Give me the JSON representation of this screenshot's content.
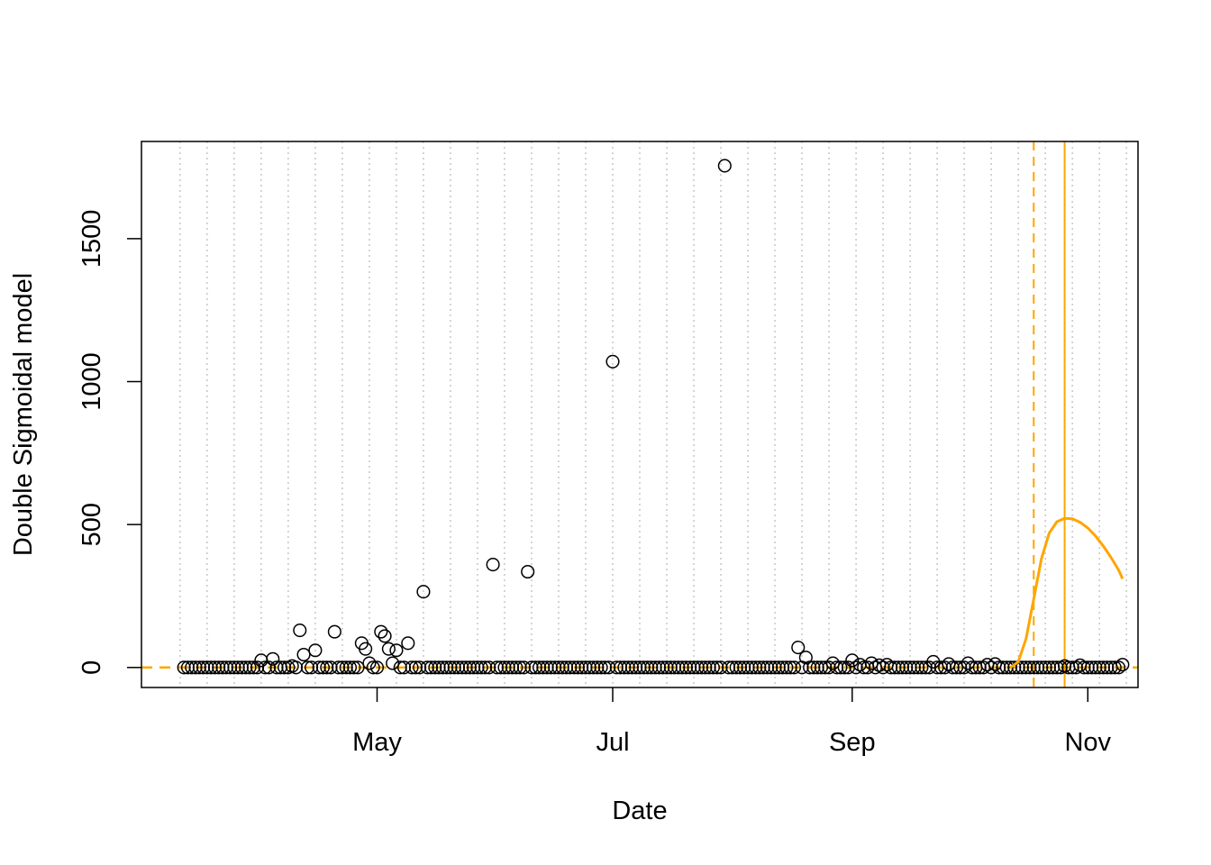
{
  "chart_data": {
    "type": "scatter",
    "xlabel": "Date",
    "ylabel": "Double Sigmoidal model",
    "x_ticks": [
      {
        "date": "2020-05-01",
        "label": "May"
      },
      {
        "date": "2020-07-01",
        "label": "Jul"
      },
      {
        "date": "2020-09-01",
        "label": "Sep"
      },
      {
        "date": "2020-11-01",
        "label": "Nov"
      }
    ],
    "y_ticks": [
      0,
      500,
      1000,
      1500
    ],
    "xlim": [
      "2020-03-01",
      "2020-11-14"
    ],
    "ylim": [
      -70,
      1840
    ],
    "grid": "vertical dotted lines every 7 days",
    "grid_start": "2020-03-11",
    "point_dates": {
      "start": "2020-03-12",
      "end": "2020-11-10",
      "step_days": 1
    },
    "nonzero_points": [
      {
        "date": "2020-04-01",
        "value": 25
      },
      {
        "date": "2020-04-04",
        "value": 30
      },
      {
        "date": "2020-04-09",
        "value": 5
      },
      {
        "date": "2020-04-11",
        "value": 130
      },
      {
        "date": "2020-04-12",
        "value": 45
      },
      {
        "date": "2020-04-15",
        "value": 60
      },
      {
        "date": "2020-04-20",
        "value": 125
      },
      {
        "date": "2020-04-27",
        "value": 85
      },
      {
        "date": "2020-04-28",
        "value": 65
      },
      {
        "date": "2020-04-29",
        "value": 15
      },
      {
        "date": "2020-05-02",
        "value": 125
      },
      {
        "date": "2020-05-03",
        "value": 110
      },
      {
        "date": "2020-05-04",
        "value": 65
      },
      {
        "date": "2020-05-05",
        "value": 15
      },
      {
        "date": "2020-05-06",
        "value": 60
      },
      {
        "date": "2020-05-09",
        "value": 85
      },
      {
        "date": "2020-05-13",
        "value": 265
      },
      {
        "date": "2020-05-31",
        "value": 360
      },
      {
        "date": "2020-06-09",
        "value": 335
      },
      {
        "date": "2020-07-01",
        "value": 1070
      },
      {
        "date": "2020-07-30",
        "value": 1755
      },
      {
        "date": "2020-08-18",
        "value": 70
      },
      {
        "date": "2020-08-20",
        "value": 35
      },
      {
        "date": "2020-08-27",
        "value": 15
      },
      {
        "date": "2020-09-01",
        "value": 25
      },
      {
        "date": "2020-09-03",
        "value": 10
      },
      {
        "date": "2020-09-06",
        "value": 15
      },
      {
        "date": "2020-09-08",
        "value": 8
      },
      {
        "date": "2020-09-10",
        "value": 10
      },
      {
        "date": "2020-09-22",
        "value": 20
      },
      {
        "date": "2020-09-26",
        "value": 12
      },
      {
        "date": "2020-10-01",
        "value": 15
      },
      {
        "date": "2020-10-06",
        "value": 10
      },
      {
        "date": "2020-10-08",
        "value": 12
      },
      {
        "date": "2020-10-26",
        "value": 5
      },
      {
        "date": "2020-10-30",
        "value": 8
      },
      {
        "date": "2020-11-10",
        "value": 10
      }
    ],
    "fitted_curve": {
      "name": "Double Sigmoidal model",
      "color": "#FFA500",
      "points": [
        {
          "date": "2020-10-12",
          "value": 0
        },
        {
          "date": "2020-10-14",
          "value": 20
        },
        {
          "date": "2020-10-16",
          "value": 100
        },
        {
          "date": "2020-10-18",
          "value": 240
        },
        {
          "date": "2020-10-20",
          "value": 380
        },
        {
          "date": "2020-10-22",
          "value": 470
        },
        {
          "date": "2020-10-24",
          "value": 510
        },
        {
          "date": "2020-10-26",
          "value": 522
        },
        {
          "date": "2020-10-28",
          "value": 520
        },
        {
          "date": "2020-10-30",
          "value": 508
        },
        {
          "date": "2020-11-01",
          "value": 488
        },
        {
          "date": "2020-11-03",
          "value": 460
        },
        {
          "date": "2020-11-05",
          "value": 425
        },
        {
          "date": "2020-11-07",
          "value": 385
        },
        {
          "date": "2020-11-09",
          "value": 340
        },
        {
          "date": "2020-11-10",
          "value": 310
        }
      ]
    },
    "baseline": {
      "value": 0,
      "style": "dashed",
      "color": "#FFA500"
    },
    "vertical_lines": [
      {
        "date": "2020-10-18",
        "style": "dashed",
        "color": "#FFA500"
      },
      {
        "date": "2020-10-26",
        "style": "solid",
        "color": "#FFA500"
      }
    ],
    "colors": {
      "points": "#000000",
      "curve": "#FFA500",
      "grid": "#BEBEBE",
      "frame": "#000000"
    }
  }
}
